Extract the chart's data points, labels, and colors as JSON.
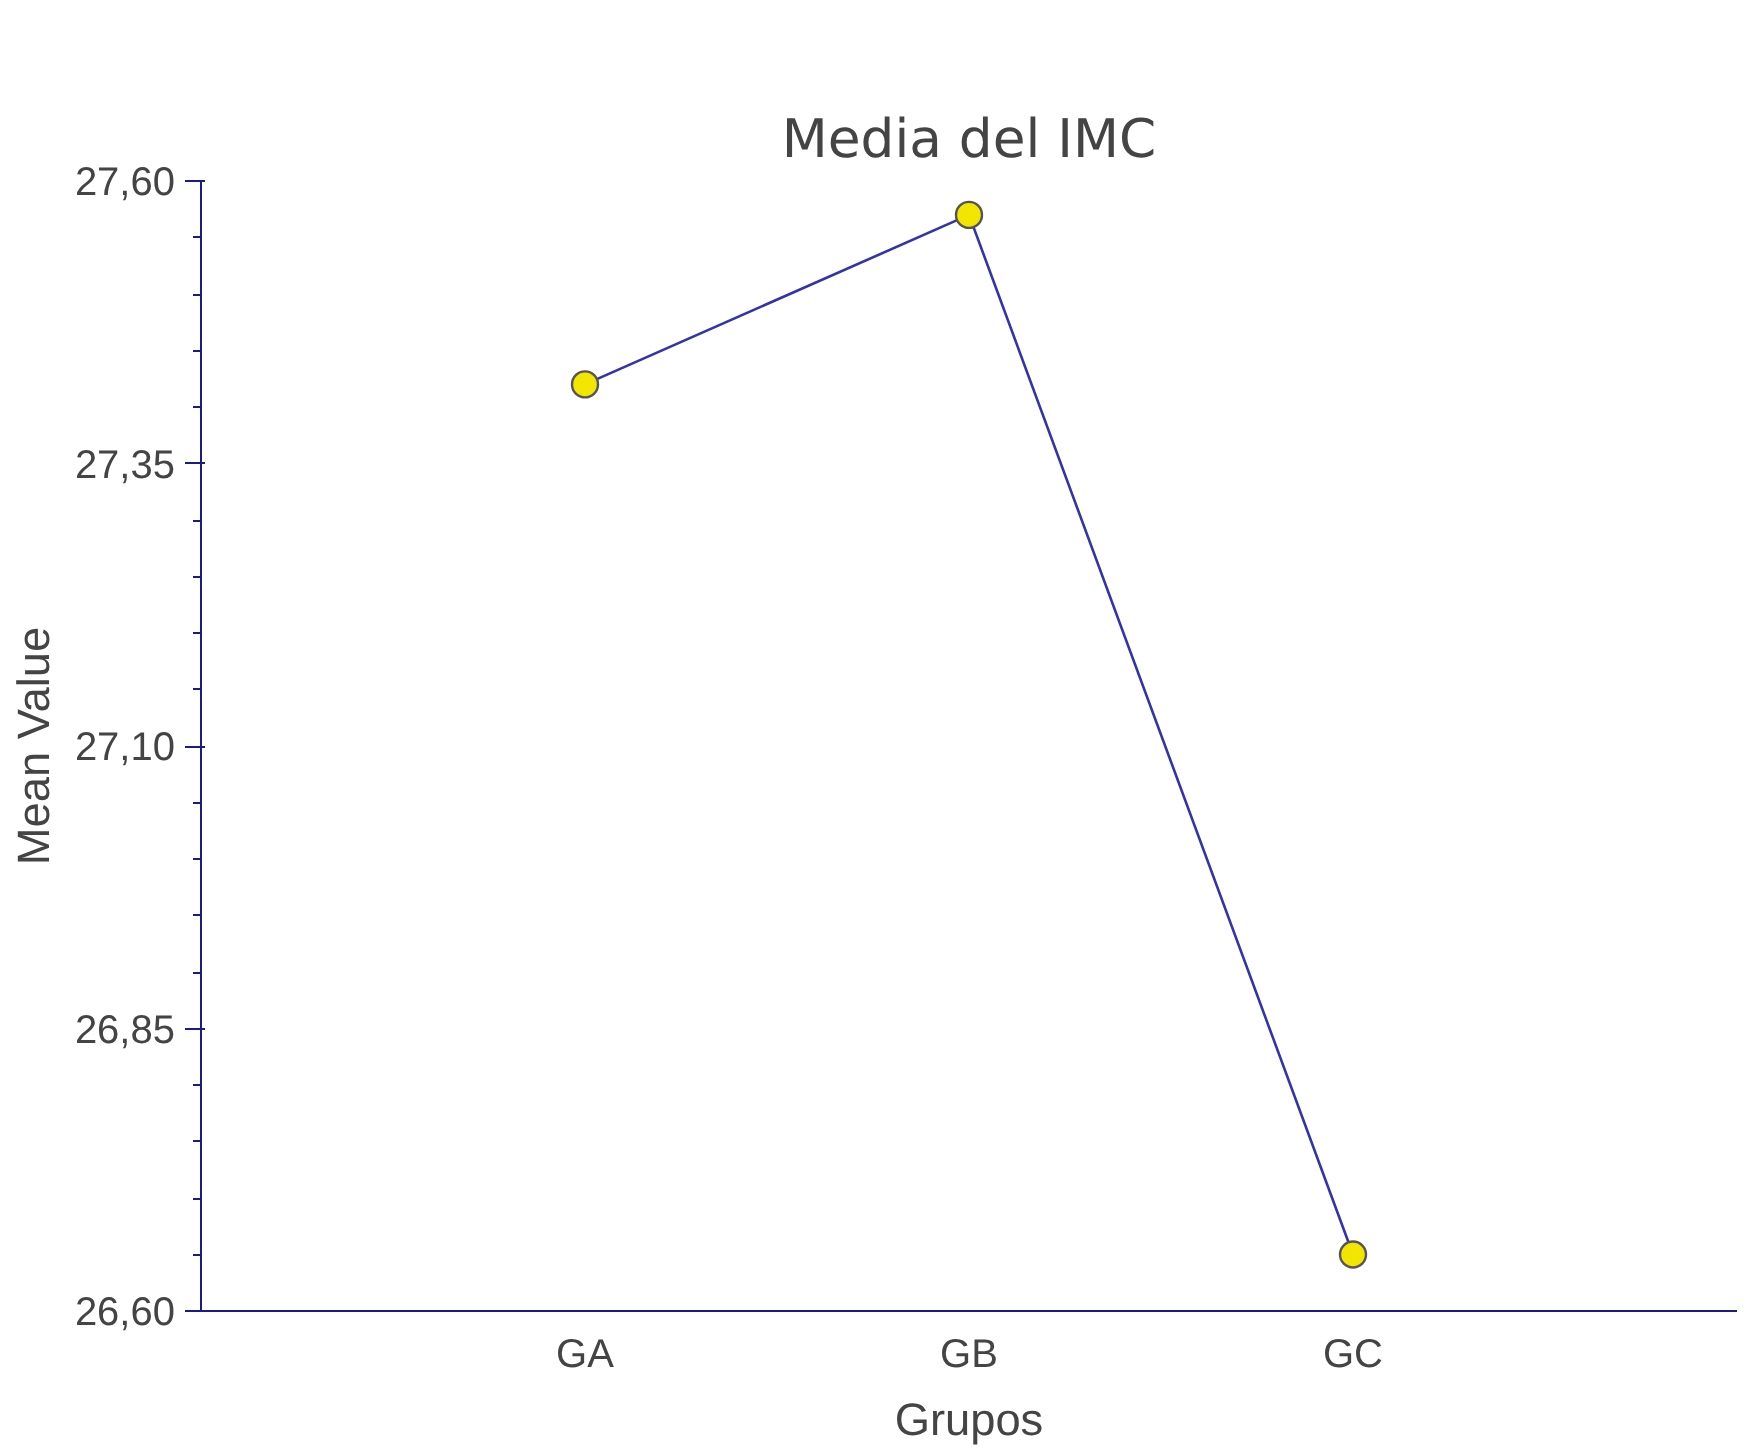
{
  "chart_data": {
    "type": "line",
    "title": "Media del IMC",
    "xlabel": "Grupos",
    "ylabel": "Mean Value",
    "categories": [
      "GA",
      "GB",
      "GC"
    ],
    "series": [
      {
        "color": "#3333aa",
        "values": [
          27.42,
          27.57,
          26.65
        ]
      }
    ],
    "marker": "circle",
    "grid": false,
    "ylim": [
      26.6,
      27.6
    ],
    "yticks": [
      {
        "value": 26.6,
        "label": "26,60"
      },
      {
        "value": 26.65,
        "label": null
      },
      {
        "value": 26.7,
        "label": null
      },
      {
        "value": 26.75,
        "label": null
      },
      {
        "value": 26.8,
        "label": null
      },
      {
        "value": 26.85,
        "label": "26,85"
      },
      {
        "value": 26.9,
        "label": null
      },
      {
        "value": 26.95,
        "label": null
      },
      {
        "value": 27.0,
        "label": null
      },
      {
        "value": 27.05,
        "label": null
      },
      {
        "value": 27.1,
        "label": "27,10"
      },
      {
        "value": 27.15,
        "label": null
      },
      {
        "value": 27.2,
        "label": null
      },
      {
        "value": 27.25,
        "label": null
      },
      {
        "value": 27.3,
        "label": null
      },
      {
        "value": 27.35,
        "label": "27,35"
      },
      {
        "value": 27.4,
        "label": null
      },
      {
        "value": 27.45,
        "label": null
      },
      {
        "value": 27.5,
        "label": null
      },
      {
        "value": 27.55,
        "label": null
      },
      {
        "value": 27.6,
        "label": "27,60"
      }
    ]
  }
}
